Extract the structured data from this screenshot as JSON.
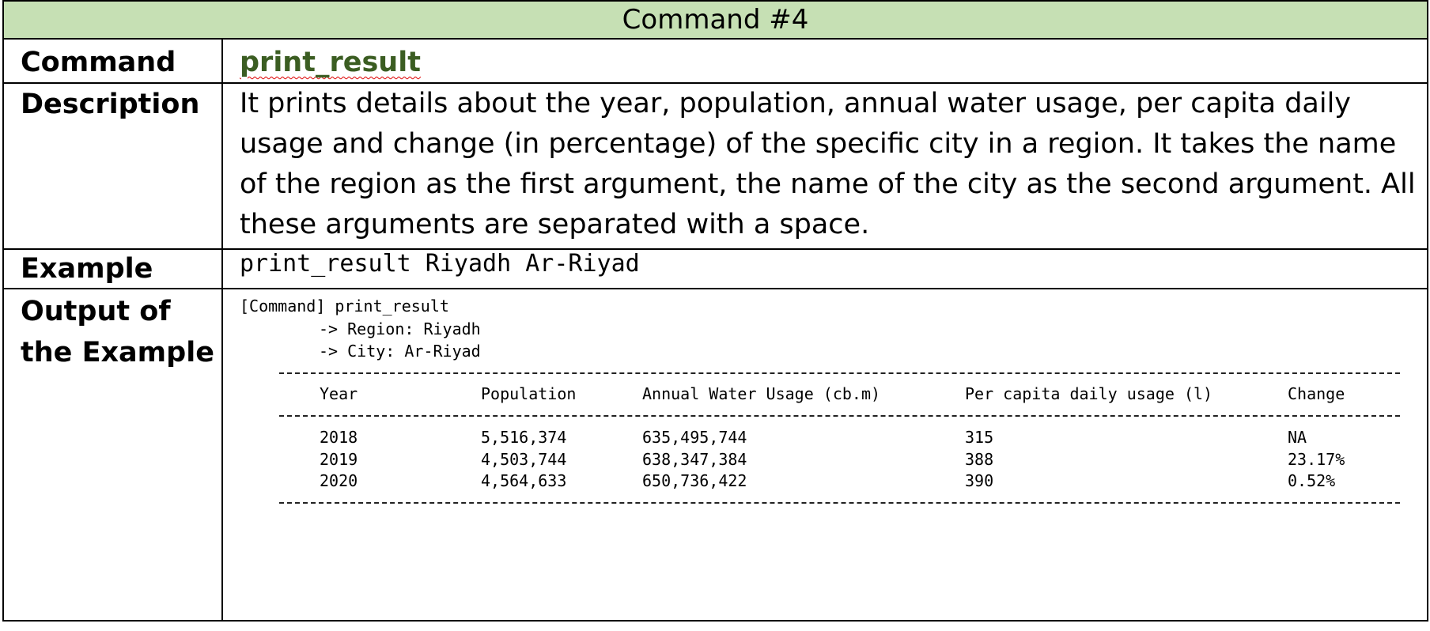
{
  "header": {
    "title": "Command #4"
  },
  "rows": [
    {
      "label": "Command",
      "value": "print_result"
    },
    {
      "label": "Description",
      "value": "It prints details about the year, population, annual water usage, per capita daily usage and change (in percentage) of the specific city in a region. It takes the name of the region as the first argument, the name of the city as the second argument. All these arguments are separated with a space."
    },
    {
      "label": "Example",
      "value": "print_result Riyadh Ar-Riyad"
    },
    {
      "label": "Output of the Example"
    }
  ],
  "output": {
    "lines": [
      "[Command] print_result",
      "-> Region: Riyadh",
      "-> City: Ar-Riyad"
    ],
    "table": {
      "columns": [
        "Year",
        "Population",
        "Annual Water Usage (cb.m)",
        "Per capita daily usage (l)",
        "Change"
      ],
      "rows": [
        [
          "2018",
          "5,516,374",
          "635,495,744",
          "315",
          "NA"
        ],
        [
          "2019",
          "4,503,744",
          "638,347,384",
          "388",
          "23.17%"
        ],
        [
          "2020",
          "4,564,633",
          "650,736,422",
          "390",
          "0.52%"
        ]
      ]
    }
  }
}
